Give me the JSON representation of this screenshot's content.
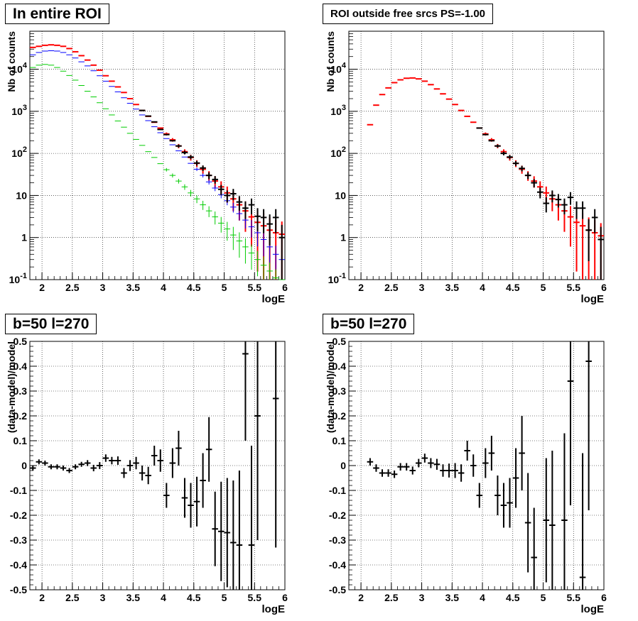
{
  "colors": {
    "data": "#000000",
    "model": "#ff0000",
    "model_blue": "#0000ff",
    "model_green": "#00cc00"
  },
  "chart_data": [
    {
      "type": "scatter",
      "title": "In entire ROI",
      "xlabel": "logE",
      "ylabel": "Nb of counts",
      "xlim": [
        1.8,
        6.0
      ],
      "ylim": [
        0.1,
        80000
      ],
      "yscale": "log",
      "grid": true,
      "xticks": [
        "2",
        "2.5",
        "3",
        "3.5",
        "4",
        "4.5",
        "5",
        "5.5",
        "6"
      ],
      "yticks": [
        "10^{-1}",
        "1",
        "10",
        "10^{2}",
        "10^{3}",
        "10^{4}"
      ],
      "series": [
        {
          "role": "model",
          "color": "red",
          "x": [
            1.85,
            1.95,
            2.05,
            2.15,
            2.25,
            2.35,
            2.45,
            2.55,
            2.65,
            2.75,
            2.85,
            2.95,
            3.05,
            3.15,
            3.25,
            3.35,
            3.45,
            3.55,
            3.65,
            3.75,
            3.85,
            3.95,
            4.05,
            4.15,
            4.25,
            4.35,
            4.45,
            4.55,
            4.65,
            4.75,
            4.85,
            4.95,
            5.05,
            5.15,
            5.25,
            5.35,
            5.45,
            5.55,
            5.65,
            5.75,
            5.85,
            5.95
          ],
          "y": [
            33000,
            35000,
            37000,
            38000,
            37000,
            35000,
            31000,
            26000,
            21000,
            16500,
            12500,
            9500,
            7000,
            5200,
            3800,
            2800,
            2000,
            1450,
            1050,
            760,
            550,
            400,
            290,
            210,
            150,
            110,
            80,
            58,
            42,
            30,
            22,
            16,
            11.5,
            8.3,
            6.0,
            4.3,
            3.1,
            2.3,
            1.9,
            1.5,
            1.3,
            1.2
          ]
        },
        {
          "role": "model",
          "color": "blue",
          "x": [
            1.85,
            1.95,
            2.05,
            2.15,
            2.25,
            2.35,
            2.45,
            2.55,
            2.65,
            2.75,
            2.85,
            2.95,
            3.05,
            3.15,
            3.25,
            3.35,
            3.45,
            3.55,
            3.65,
            3.75,
            3.85,
            3.95,
            4.05,
            4.15,
            4.25,
            4.35,
            4.45,
            4.55,
            4.65,
            4.75,
            4.85,
            4.95,
            5.05,
            5.15,
            5.25,
            5.35,
            5.45,
            5.55,
            5.65,
            5.75,
            5.85,
            5.95
          ],
          "y": [
            22000,
            25000,
            27000,
            27500,
            27000,
            25000,
            22000,
            18500,
            15000,
            12000,
            9200,
            7000,
            5200,
            3900,
            2900,
            2100,
            1550,
            1130,
            820,
            600,
            430,
            310,
            225,
            160,
            115,
            82,
            58,
            42,
            30,
            21,
            15,
            10.5,
            7.5,
            5.3,
            3.7,
            2.6,
            1.8,
            1.3,
            0.9,
            0.6,
            0.4,
            0.3
          ]
        },
        {
          "role": "model",
          "color": "green",
          "x": [
            1.85,
            1.95,
            2.05,
            2.15,
            2.25,
            2.35,
            2.45,
            2.55,
            2.65,
            2.75,
            2.85,
            2.95,
            3.05,
            3.15,
            3.25,
            3.35,
            3.45,
            3.55,
            3.65,
            3.75,
            3.85,
            3.95,
            4.05,
            4.15,
            4.25,
            4.35,
            4.45,
            4.55,
            4.65,
            4.75,
            4.85,
            4.95,
            5.05,
            5.15,
            5.25,
            5.35,
            5.45,
            5.55,
            5.65,
            5.75,
            5.85,
            5.95
          ],
          "y": [
            11000,
            12500,
            13000,
            12500,
            11000,
            9000,
            7100,
            5500,
            4100,
            3000,
            2200,
            1600,
            1150,
            820,
            590,
            420,
            300,
            215,
            155,
            110,
            80,
            57,
            41,
            30,
            22,
            16,
            11.5,
            8.3,
            6.0,
            4.3,
            3.1,
            2.2,
            1.6,
            1.15,
            0.83,
            0.6,
            0.43,
            0.3,
            0.22,
            0.16,
            0.11,
            0.08
          ]
        },
        {
          "role": "data",
          "color": "black",
          "x": [
            3.65,
            3.75,
            3.85,
            3.95,
            4.05,
            4.15,
            4.25,
            4.35,
            4.45,
            4.55,
            4.65,
            4.75,
            4.85,
            4.95,
            5.05,
            5.15,
            5.25,
            5.35,
            5.45,
            5.55,
            5.65,
            5.75,
            5.85,
            5.95
          ],
          "y": [
            1050,
            770,
            560,
            370,
            280,
            200,
            150,
            105,
            82,
            59,
            45,
            30,
            24,
            14,
            10,
            11,
            7,
            5,
            6,
            3.2,
            3,
            2.1,
            3,
            1
          ]
        }
      ]
    },
    {
      "type": "scatter",
      "title": "ROI outside free srcs PS=-1.00",
      "xlabel": "logE",
      "ylabel": "Nb of counts",
      "xlim": [
        1.8,
        6.0
      ],
      "ylim": [
        0.1,
        80000
      ],
      "yscale": "log",
      "grid": true,
      "xticks": [
        "2",
        "2.5",
        "3",
        "3.5",
        "4",
        "4.5",
        "5",
        "5.5",
        "6"
      ],
      "yticks": [
        "10^{-1}",
        "1",
        "10",
        "10^{2}",
        "10^{3}",
        "10^{4}"
      ],
      "series": [
        {
          "role": "model",
          "color": "red",
          "x": [
            2.15,
            2.25,
            2.35,
            2.45,
            2.55,
            2.65,
            2.75,
            2.85,
            2.95,
            3.05,
            3.15,
            3.25,
            3.35,
            3.45,
            3.55,
            3.65,
            3.75,
            3.85,
            3.95,
            4.05,
            4.15,
            4.25,
            4.35,
            4.45,
            4.55,
            4.65,
            4.75,
            4.85,
            4.95,
            5.05,
            5.15,
            5.25,
            5.35,
            5.45,
            5.55,
            5.65,
            5.75,
            5.85,
            5.95
          ],
          "y": [
            480,
            1400,
            2500,
            3600,
            4800,
            5600,
            6100,
            6200,
            5900,
            5200,
            4300,
            3400,
            2600,
            1950,
            1450,
            1050,
            760,
            550,
            400,
            290,
            210,
            150,
            110,
            80,
            58,
            42,
            30,
            22,
            16,
            11.5,
            8.3,
            6.0,
            4.3,
            3.1,
            2.3,
            1.9,
            1.5,
            1.3,
            1.1
          ]
        },
        {
          "role": "data",
          "color": "black",
          "x": [
            3.95,
            4.05,
            4.15,
            4.25,
            4.35,
            4.45,
            4.55,
            4.65,
            4.75,
            4.85,
            4.95,
            5.05,
            5.15,
            5.25,
            5.35,
            5.45,
            5.55,
            5.65,
            5.75,
            5.85,
            5.95
          ],
          "y": [
            400,
            280,
            200,
            150,
            100,
            82,
            58,
            44,
            30,
            20,
            12,
            6.5,
            10,
            8,
            6,
            9,
            5,
            5,
            1.5,
            3,
            0.9
          ]
        }
      ]
    },
    {
      "type": "scatter",
      "title": "b=50 l=270",
      "xlabel": "logE",
      "ylabel": "(data-model)/model",
      "xlim": [
        1.8,
        6.0
      ],
      "ylim": [
        -0.5,
        0.5
      ],
      "grid": true,
      "xticks": [
        "2",
        "2.5",
        "3",
        "3.5",
        "4",
        "4.5",
        "5",
        "5.5",
        "6"
      ],
      "yticks": [
        "-0.5",
        "-0.4",
        "-0.3",
        "-0.2",
        "-0.1",
        "0",
        "0.1",
        "0.2",
        "0.3",
        "0.4",
        "0.5"
      ],
      "series": [
        {
          "role": "data",
          "color": "black",
          "x": [
            1.85,
            1.95,
            2.05,
            2.15,
            2.25,
            2.35,
            2.45,
            2.55,
            2.65,
            2.75,
            2.85,
            2.95,
            3.05,
            3.15,
            3.25,
            3.35,
            3.45,
            3.55,
            3.65,
            3.75,
            3.85,
            3.95,
            4.05,
            4.15,
            4.25,
            4.35,
            4.45,
            4.55,
            4.65,
            4.75,
            4.85,
            4.95,
            5.05,
            5.15,
            5.25,
            5.35,
            5.45,
            5.55,
            5.65,
            5.75,
            5.85,
            5.95
          ],
          "y": [
            -0.01,
            0.015,
            0.01,
            -0.005,
            -0.005,
            -0.01,
            -0.02,
            -0.005,
            0.005,
            0.01,
            -0.01,
            0.0,
            0.03,
            0.02,
            0.02,
            -0.03,
            0.0,
            0.01,
            -0.03,
            -0.04,
            0.04,
            0.02,
            -0.12,
            0.01,
            0.07,
            -0.13,
            -0.16,
            -0.145,
            -0.06,
            0.065,
            -0.255,
            -0.265,
            -0.27,
            -0.31,
            -0.32,
            0.45,
            -0.32,
            0.2,
            null,
            null,
            0.27,
            null
          ],
          "err": [
            0.01,
            0.01,
            0.01,
            0.01,
            0.01,
            0.01,
            0.01,
            0.01,
            0.01,
            0.012,
            0.013,
            0.014,
            0.015,
            0.015,
            0.017,
            0.02,
            0.022,
            0.025,
            0.03,
            0.035,
            0.04,
            0.045,
            0.05,
            0.06,
            0.07,
            0.08,
            0.09,
            0.1,
            0.11,
            0.13,
            0.15,
            0.2,
            0.22,
            0.25,
            0.3,
            0.35,
            0.4,
            0.5,
            0,
            0,
            0.6,
            0
          ]
        }
      ]
    },
    {
      "type": "scatter",
      "title": "b=50 l=270",
      "xlabel": "logE",
      "ylabel": "(data-model)/model",
      "xlim": [
        1.8,
        6.0
      ],
      "ylim": [
        -0.5,
        0.5
      ],
      "grid": true,
      "xticks": [
        "2",
        "2.5",
        "3",
        "3.5",
        "4",
        "4.5",
        "5",
        "5.5",
        "6"
      ],
      "yticks": [
        "-0.5",
        "-0.4",
        "-0.3",
        "-0.2",
        "-0.1",
        "0",
        "0.1",
        "0.2",
        "0.3",
        "0.4",
        "0.5"
      ],
      "series": [
        {
          "role": "data",
          "color": "black",
          "x": [
            2.15,
            2.25,
            2.35,
            2.45,
            2.55,
            2.65,
            2.75,
            2.85,
            2.95,
            3.05,
            3.15,
            3.25,
            3.35,
            3.45,
            3.55,
            3.65,
            3.75,
            3.85,
            3.95,
            4.05,
            4.15,
            4.25,
            4.35,
            4.45,
            4.55,
            4.65,
            4.75,
            4.85,
            4.95,
            5.05,
            5.15,
            5.25,
            5.35,
            5.45,
            5.55,
            5.65,
            5.75,
            5.85,
            5.95
          ],
          "y": [
            0.015,
            -0.01,
            -0.03,
            -0.03,
            -0.035,
            -0.005,
            -0.005,
            -0.02,
            0.01,
            0.03,
            0.01,
            0.005,
            -0.02,
            -0.02,
            -0.02,
            -0.03,
            0.06,
            0.0,
            -0.12,
            0.01,
            0.05,
            -0.12,
            -0.16,
            -0.15,
            -0.05,
            0.05,
            -0.23,
            -0.37,
            null,
            -0.22,
            -0.24,
            null,
            -0.22,
            0.34,
            null,
            -0.45,
            0.42,
            null,
            null
          ],
          "err": [
            0.015,
            0.015,
            0.015,
            0.015,
            0.015,
            0.015,
            0.015,
            0.016,
            0.017,
            0.018,
            0.02,
            0.022,
            0.025,
            0.028,
            0.03,
            0.035,
            0.04,
            0.045,
            0.05,
            0.06,
            0.07,
            0.08,
            0.09,
            0.1,
            0.12,
            0.15,
            0.2,
            0.2,
            0,
            0.25,
            0.3,
            0,
            0.35,
            0.5,
            0,
            0.5,
            0.6,
            0,
            0
          ]
        }
      ]
    }
  ]
}
